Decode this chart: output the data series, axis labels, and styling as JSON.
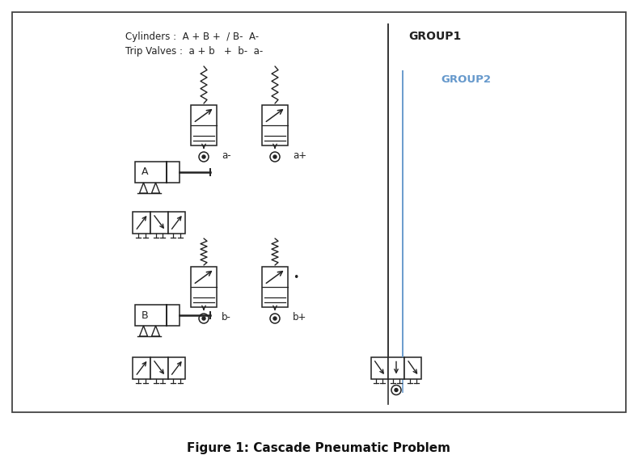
{
  "title": "Figure 1: Cascade Pneumatic Problem",
  "cylinders_text": "Cylinders :  A + B +  / B-  A-",
  "trip_valves_text": "Trip Valves :  a + b   +  b-  a-",
  "group1_label": "GROUP1",
  "group2_label": "GROUP2",
  "group1_color": "#222222",
  "group2_color": "#6699cc",
  "bg_color": "#ffffff",
  "border_color": "#444444",
  "dc": "#222222",
  "label_a_minus": "a-",
  "label_a_plus": "a+",
  "label_b_minus": "b-",
  "label_b_plus": "b+",
  "label_A": "A",
  "label_B": "B",
  "fig_w": 7.89,
  "fig_h": 5.79,
  "dpi": 100
}
